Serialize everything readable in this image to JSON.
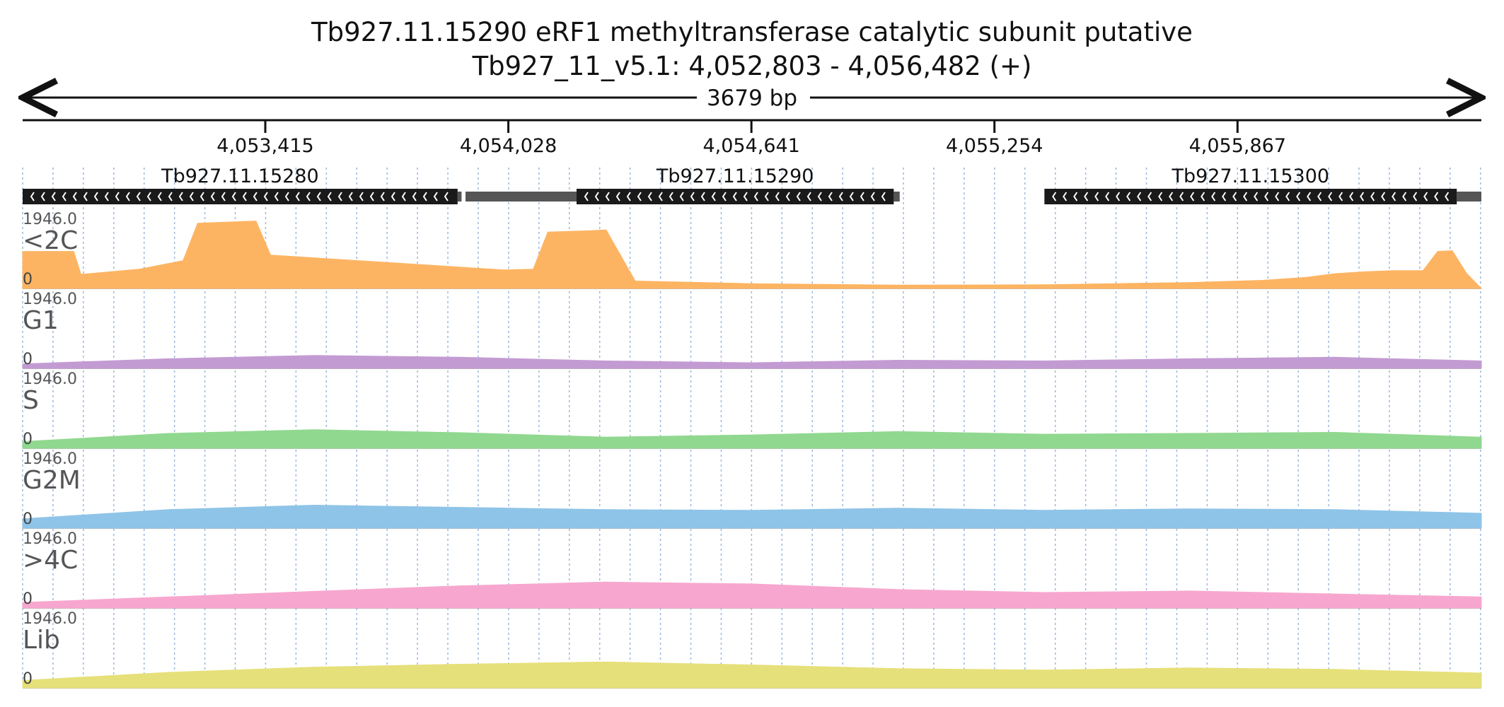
{
  "header": {
    "title": "Tb927.11.15290  eRF1 methyltransferase catalytic subunit  putative",
    "location": "Tb927_11_v5.1: 4,052,803 - 4,056,482 (+)",
    "span_label": "3679 bp"
  },
  "chart_data": {
    "type": "area",
    "chrom": "Tb927_11_v5.1",
    "region": {
      "start": 4052803,
      "end": 4056482,
      "strand": "+"
    },
    "ticks": [
      {
        "pos": 4053415,
        "label": "4,053,415"
      },
      {
        "pos": 4054028,
        "label": "4,054,028"
      },
      {
        "pos": 4054641,
        "label": "4,054,641"
      },
      {
        "pos": 4055254,
        "label": "4,055,254"
      },
      {
        "pos": 4055867,
        "label": "4,055,867"
      }
    ],
    "genes": [
      {
        "name": "Tb927.11.15280",
        "start": 4052803,
        "end": 4053900,
        "strand": "-",
        "utr_end": 4053910
      },
      {
        "name": "Tb927.11.15290",
        "start": 4054200,
        "end": 4055000,
        "strand": "-",
        "utr_start": 4053920,
        "utr_end": 4055015
      },
      {
        "name": "Tb927.11.15300",
        "start": 4055380,
        "end": 4056420,
        "strand": "-",
        "utr_end": 4056482
      }
    ],
    "grid_spacing_bp": 76.6,
    "y_max_label": "1946.0",
    "y_min_label": "0",
    "ylim": [
      0,
      1946
    ],
    "tracks": [
      {
        "name": "<2C",
        "color": "#fdb462",
        "profile": [
          [
            0,
            1000
          ],
          [
            0.035,
            1000
          ],
          [
            0.04,
            380
          ],
          [
            0.08,
            520
          ],
          [
            0.11,
            750
          ],
          [
            0.12,
            1760
          ],
          [
            0.16,
            1820
          ],
          [
            0.17,
            900
          ],
          [
            0.25,
            700
          ],
          [
            0.33,
            500
          ],
          [
            0.35,
            520
          ],
          [
            0.36,
            1520
          ],
          [
            0.39,
            1560
          ],
          [
            0.4,
            1580
          ],
          [
            0.42,
            200
          ],
          [
            0.5,
            130
          ],
          [
            0.6,
            90
          ],
          [
            0.7,
            100
          ],
          [
            0.8,
            160
          ],
          [
            0.85,
            220
          ],
          [
            0.88,
            300
          ],
          [
            0.9,
            400
          ],
          [
            0.92,
            450
          ],
          [
            0.94,
            480
          ],
          [
            0.96,
            480
          ],
          [
            0.97,
            1000
          ],
          [
            0.98,
            1020
          ],
          [
            0.99,
            400
          ],
          [
            1.0,
            0
          ]
        ]
      },
      {
        "name": "G1",
        "color": "#c39bd3",
        "profile": [
          [
            0,
            120
          ],
          [
            0.1,
            260
          ],
          [
            0.2,
            350
          ],
          [
            0.3,
            300
          ],
          [
            0.4,
            200
          ],
          [
            0.5,
            150
          ],
          [
            0.6,
            220
          ],
          [
            0.7,
            200
          ],
          [
            0.8,
            260
          ],
          [
            0.9,
            300
          ],
          [
            1.0,
            200
          ]
        ]
      },
      {
        "name": "S",
        "color": "#90d88f",
        "profile": [
          [
            0,
            180
          ],
          [
            0.1,
            400
          ],
          [
            0.2,
            500
          ],
          [
            0.3,
            420
          ],
          [
            0.4,
            300
          ],
          [
            0.5,
            360
          ],
          [
            0.6,
            450
          ],
          [
            0.7,
            380
          ],
          [
            0.8,
            400
          ],
          [
            0.9,
            430
          ],
          [
            1.0,
            300
          ]
        ]
      },
      {
        "name": "G2M",
        "color": "#8ec4e8",
        "profile": [
          [
            0,
            250
          ],
          [
            0.1,
            500
          ],
          [
            0.2,
            620
          ],
          [
            0.3,
            560
          ],
          [
            0.4,
            500
          ],
          [
            0.5,
            480
          ],
          [
            0.6,
            540
          ],
          [
            0.7,
            480
          ],
          [
            0.8,
            520
          ],
          [
            0.9,
            500
          ],
          [
            1.0,
            400
          ]
        ]
      },
      {
        "name": ">4C",
        "color": "#f7a7cf",
        "profile": [
          [
            0,
            150
          ],
          [
            0.1,
            300
          ],
          [
            0.2,
            450
          ],
          [
            0.3,
            600
          ],
          [
            0.4,
            700
          ],
          [
            0.5,
            650
          ],
          [
            0.6,
            500
          ],
          [
            0.7,
            420
          ],
          [
            0.8,
            460
          ],
          [
            0.9,
            380
          ],
          [
            1.0,
            300
          ]
        ]
      },
      {
        "name": "Lib",
        "color": "#e6e07a",
        "profile": [
          [
            0,
            200
          ],
          [
            0.1,
            420
          ],
          [
            0.2,
            560
          ],
          [
            0.3,
            640
          ],
          [
            0.4,
            700
          ],
          [
            0.5,
            620
          ],
          [
            0.6,
            520
          ],
          [
            0.7,
            480
          ],
          [
            0.8,
            540
          ],
          [
            0.9,
            500
          ],
          [
            1.0,
            400
          ]
        ]
      }
    ]
  }
}
